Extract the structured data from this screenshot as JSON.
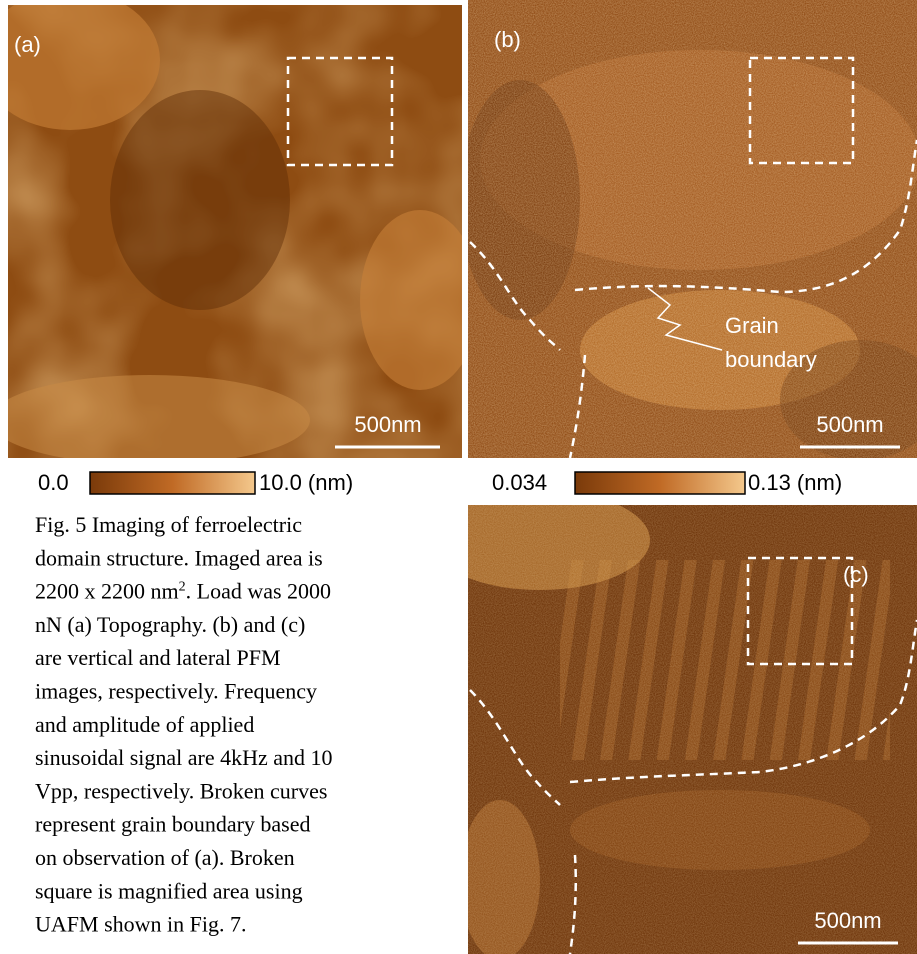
{
  "panels": [
    {
      "label": "(a)",
      "scale_bar": "500nm",
      "colorbar": {
        "min": "0.0",
        "max": "10.0 (nm)"
      }
    },
    {
      "label": "(b)",
      "scale_bar": "500nm",
      "annotation": [
        "Grain",
        "boundary"
      ],
      "colorbar": {
        "min": "0.034",
        "max": "0.13 (nm)"
      }
    },
    {
      "label": "(c)",
      "scale_bar": "500nm"
    }
  ],
  "caption": {
    "lines": [
      "Fig. 5 Imaging of ferroelectric",
      "domain structure.   Imaged area is",
      [
        "2200 x 2200 nm",
        "2",
        ".   Load was 2000"
      ],
      "nN  (a) Topography. (b) and (c)",
      "are vertical and lateral PFM",
      "images, respectively.  Frequency",
      "and amplitude of applied",
      "sinusoidal signal are 4kHz and 10",
      "Vpp, respectively.  Broken curves",
      "represent grain boundary  based",
      "on observation of (a).  Broken",
      "square is magnified area using",
      "UAFM shown in Fig. 7."
    ]
  }
}
